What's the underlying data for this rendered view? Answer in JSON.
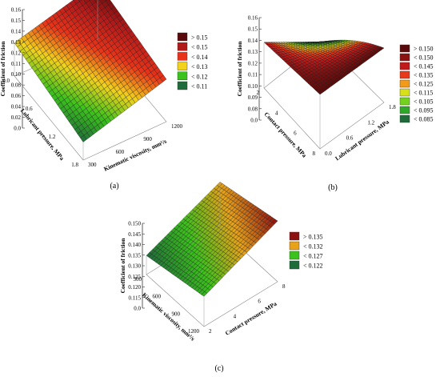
{
  "chart_data": [
    {
      "panel_label": "(a)",
      "type": "surface3d",
      "zlabel": "Coefficient of friction",
      "xlabel": "Lubricant pressure, MPa",
      "ylabel": "Kinematic viscosity, mm²/s",
      "zticks": [
        "0.0",
        "0.02",
        "0.04",
        "0.06",
        "0.08",
        "0.10",
        "0.11",
        "0.12",
        "0.13",
        "0.14",
        "0.15",
        "0.16"
      ],
      "xticks": [
        "0.0",
        "0.6",
        "1.2",
        "1.8"
      ],
      "yticks": [
        "300",
        "600",
        "900",
        "1200"
      ],
      "x_range": [
        0.0,
        1.8
      ],
      "y_range": [
        300,
        1200
      ],
      "z_range": [
        0.0,
        0.16
      ],
      "corner_values": {
        "x0_y0": 0.115,
        "x1_y0": 0.09,
        "x0_y1": 0.155,
        "x1_y1": 0.13
      },
      "legend": [
        {
          "label": "> 0.15",
          "color": "#5a0a0a"
        },
        {
          "label": "< 0.15",
          "color": "#b21a1a"
        },
        {
          "label": "< 0.14",
          "color": "#e8331a"
        },
        {
          "label": "< 0.13",
          "color": "#f2d21c"
        },
        {
          "label": "< 0.12",
          "color": "#3cc21c"
        },
        {
          "label": "< 0.11",
          "color": "#1f6b3a"
        }
      ]
    },
    {
      "panel_label": "(b)",
      "type": "surface3d",
      "zlabel": "Coefficient of friction",
      "xlabel": "Contact pressure, MPa",
      "ylabel": "Lubricant pressure, MPa",
      "zticks": [
        "0.0",
        "0.08",
        "0.09",
        "0.10",
        "0.11",
        "0.12",
        "0.13",
        "0.14",
        "0.15",
        "0.16"
      ],
      "xticks": [
        "2",
        "4",
        "6",
        "8"
      ],
      "yticks": [
        "0.0",
        "0.6",
        "1.2",
        "1.8"
      ],
      "x_range": [
        2,
        8
      ],
      "y_range": [
        0.0,
        1.8
      ],
      "z_range": [
        0.0,
        0.16
      ],
      "corner_values": {
        "x0_y0": 0.135,
        "x1_y0": 0.15,
        "x0_y1": 0.085,
        "x1_y1": 0.15
      },
      "legend": [
        {
          "label": "> 0.150",
          "color": "#5a0a0a"
        },
        {
          "label": "< 0.150",
          "color": "#8c1111"
        },
        {
          "label": "< 0.145",
          "color": "#c21a1a"
        },
        {
          "label": "< 0.135",
          "color": "#e83a1a"
        },
        {
          "label": "< 0.125",
          "color": "#f29a1a"
        },
        {
          "label": "< 0.115",
          "color": "#d8e01c"
        },
        {
          "label": "< 0.105",
          "color": "#72d21c"
        },
        {
          "label": "< 0.095",
          "color": "#2fa82a"
        },
        {
          "label": "< 0.085",
          "color": "#1f6b3a"
        }
      ]
    },
    {
      "panel_label": "(c)",
      "type": "surface3d",
      "zlabel": "Coefficient of friction",
      "xlabel": "Kinematic viscosity, mm²/s",
      "ylabel": "Contact pressure, MPa",
      "zticks": [
        "0.0",
        "0.115",
        "0.120",
        "0.125",
        "0.130",
        "0.135",
        "0.140",
        "0.145",
        "0.150"
      ],
      "xticks": [
        "300",
        "600",
        "900",
        "1200"
      ],
      "yticks": [
        "2",
        "4",
        "6",
        "8"
      ],
      "x_range": [
        300,
        1200
      ],
      "y_range": [
        2,
        8
      ],
      "z_range": [
        0.0,
        0.15
      ],
      "corner_values": {
        "x0_y0": 0.118,
        "x1_y0": 0.126,
        "x0_y1": 0.138,
        "x1_y1": 0.148
      },
      "legend": [
        {
          "label": "> 0.135",
          "color": "#8c1111"
        },
        {
          "label": "< 0.132",
          "color": "#e8a21a"
        },
        {
          "label": "< 0.127",
          "color": "#3cc21c"
        },
        {
          "label": "< 0.122",
          "color": "#1f6b3a"
        }
      ]
    }
  ]
}
